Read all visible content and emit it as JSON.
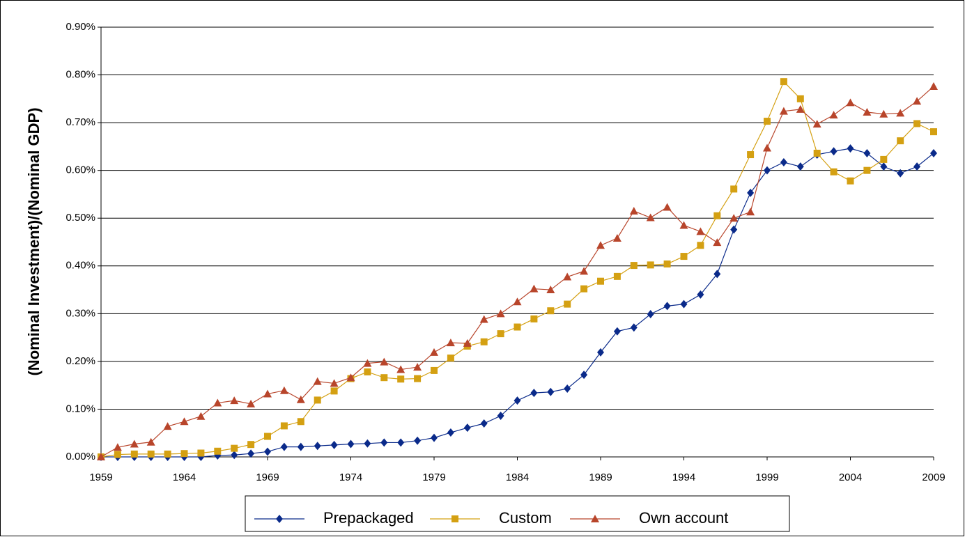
{
  "chart_data": {
    "type": "line",
    "y_label": "(Nominal Investment)/(Nominal GDP)",
    "x": [
      1959,
      1960,
      1961,
      1962,
      1963,
      1964,
      1965,
      1966,
      1967,
      1968,
      1969,
      1970,
      1971,
      1972,
      1973,
      1974,
      1975,
      1976,
      1977,
      1978,
      1979,
      1980,
      1981,
      1982,
      1983,
      1984,
      1985,
      1986,
      1987,
      1988,
      1989,
      1990,
      1991,
      1992,
      1993,
      1994,
      1995,
      1996,
      1997,
      1998,
      1999,
      2000,
      2001,
      2002,
      2003,
      2004,
      2005,
      2006,
      2007,
      2008,
      2009
    ],
    "xlim": [
      1959,
      2009
    ],
    "xticks": [
      1959,
      1964,
      1969,
      1974,
      1979,
      1984,
      1989,
      1994,
      1999,
      2004,
      2009
    ],
    "ylim": [
      0,
      0.9
    ],
    "yticks": [
      {
        "value": 0,
        "label": "0.00%"
      },
      {
        "value": 0.1,
        "label": "0.10%"
      },
      {
        "value": 0.2,
        "label": "0.20%"
      },
      {
        "value": 0.3,
        "label": "0.30%"
      },
      {
        "value": 0.4,
        "label": "0.40%"
      },
      {
        "value": 0.5,
        "label": "0.50%"
      },
      {
        "value": 0.6,
        "label": "0.60%"
      },
      {
        "value": 0.7,
        "label": "0.70%"
      },
      {
        "value": 0.8,
        "label": "0.80%"
      },
      {
        "value": 0.9,
        "label": "0.90%"
      }
    ],
    "grid": true,
    "legend": "bottom",
    "series": [
      {
        "name": "Prepackaged",
        "color": "#0a2a8a",
        "marker": "diamond",
        "values": [
          0,
          0,
          0,
          0,
          0,
          0,
          0,
          0.003,
          0.004,
          0.007,
          0.011,
          0.021,
          0.021,
          0.023,
          0.025,
          0.027,
          0.028,
          0.03,
          0.03,
          0.034,
          0.04,
          0.051,
          0.061,
          0.07,
          0.086,
          0.118,
          0.134,
          0.136,
          0.143,
          0.172,
          0.219,
          0.263,
          0.271,
          0.299,
          0.316,
          0.32,
          0.34,
          0.383,
          0.476,
          0.553,
          0.6,
          0.617,
          0.608,
          0.633,
          0.64,
          0.646,
          0.636,
          0.608,
          0.594,
          0.608,
          0.636
        ]
      },
      {
        "name": "Custom",
        "color": "#d4a012",
        "marker": "square",
        "values": [
          0,
          0.005,
          0.006,
          0.006,
          0.006,
          0.007,
          0.008,
          0.012,
          0.018,
          0.026,
          0.043,
          0.065,
          0.074,
          0.119,
          0.138,
          0.164,
          0.178,
          0.166,
          0.163,
          0.164,
          0.181,
          0.207,
          0.232,
          0.241,
          0.258,
          0.272,
          0.289,
          0.306,
          0.32,
          0.352,
          0.368,
          0.378,
          0.401,
          0.402,
          0.404,
          0.42,
          0.443,
          0.505,
          0.561,
          0.633,
          0.703,
          0.786,
          0.75,
          0.636,
          0.597,
          0.578,
          0.6,
          0.623,
          0.662,
          0.698,
          0.681
        ]
      },
      {
        "name": "Own account",
        "color": "#b8452b",
        "marker": "triangle",
        "values": [
          0,
          0.02,
          0.027,
          0.031,
          0.064,
          0.074,
          0.085,
          0.113,
          0.118,
          0.111,
          0.132,
          0.139,
          0.12,
          0.158,
          0.154,
          0.166,
          0.196,
          0.199,
          0.183,
          0.188,
          0.219,
          0.239,
          0.238,
          0.288,
          0.3,
          0.325,
          0.352,
          0.35,
          0.377,
          0.389,
          0.443,
          0.458,
          0.515,
          0.501,
          0.523,
          0.485,
          0.472,
          0.449,
          0.5,
          0.513,
          0.647,
          0.724,
          0.728,
          0.697,
          0.716,
          0.742,
          0.722,
          0.718,
          0.72,
          0.745,
          0.776
        ]
      }
    ]
  }
}
